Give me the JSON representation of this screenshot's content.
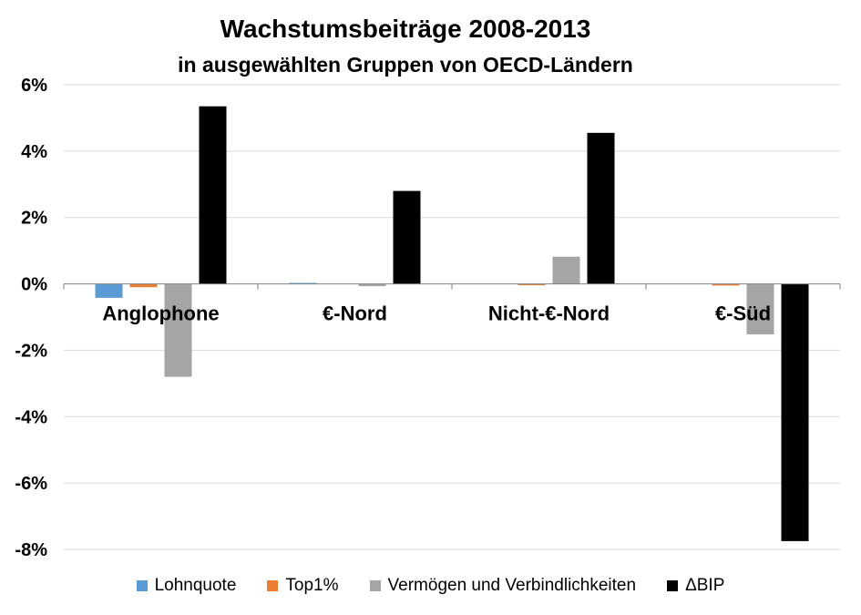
{
  "title": "Wachstumsbeiträge 2008-2013",
  "subtitle": "in ausgewählten Gruppen von OECD-Ländern",
  "chart_data": {
    "type": "bar",
    "title": "Wachstumsbeiträge 2008-2013",
    "subtitle": "in ausgewählten Gruppen von OECD-Ländern",
    "xlabel": "",
    "ylabel": "",
    "categories": [
      "Anglophone",
      "€-Nord",
      "Nicht-€-Nord",
      "€-Süd"
    ],
    "ylim": [
      -0.08,
      0.06
    ],
    "yticks": [
      0.06,
      0.04,
      0.02,
      0.0,
      -0.02,
      -0.04,
      -0.06,
      -0.08
    ],
    "ytick_labels": [
      "6%",
      "4%",
      "2%",
      "0%",
      "-2%",
      "-4%",
      "-6%",
      "-8%"
    ],
    "grid": true,
    "legend_position": "bottom",
    "series": [
      {
        "name": "Lohnquote",
        "color": "#5B9BD5",
        "values": [
          -0.0042,
          0.0003,
          0.0,
          0.0
        ]
      },
      {
        "name": "Top1%",
        "color": "#ED7D31",
        "values": [
          -0.001,
          0.0,
          -0.0003,
          -0.0005
        ]
      },
      {
        "name": "Vermögen und Verbindlichkeiten",
        "color": "#A5A5A5",
        "values": [
          -0.028,
          -0.0007,
          0.0082,
          -0.0152
        ]
      },
      {
        "name": "ΔBIP",
        "color": "#000000",
        "values": [
          0.0535,
          0.028,
          0.0455,
          -0.0775
        ]
      }
    ]
  }
}
